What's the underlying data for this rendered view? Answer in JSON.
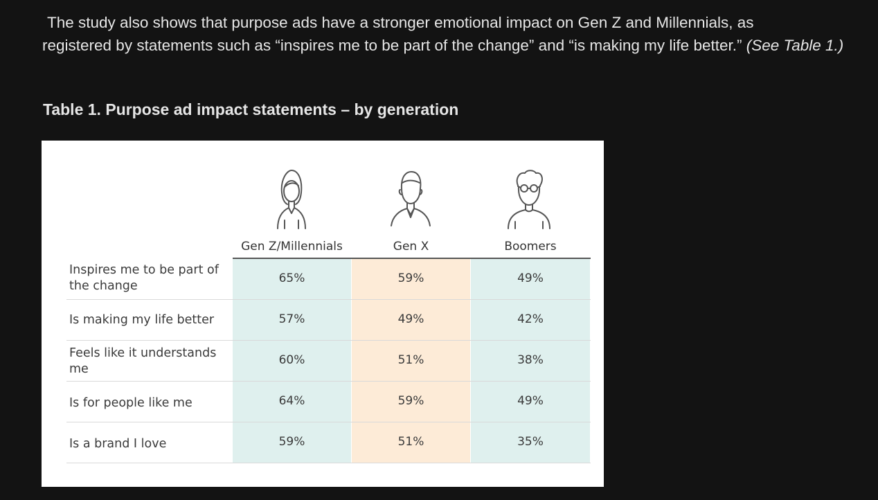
{
  "intro": {
    "lead": "The study also shows that purpose ads have a stronger emotional impact on Gen Z and Millennials, as",
    "body": "registered by statements such as “inspires me to be part of the change” and “is making my life better.” ",
    "ref": "(See Table 1.)"
  },
  "table": {
    "title": "Table 1. Purpose ad impact statements – by generation",
    "columns": [
      "Gen Z/Millennials",
      "Gen X",
      "Boomers"
    ],
    "avatars": [
      "woman-avatar-icon",
      "man-avatar-icon",
      "older-man-glasses-avatar-icon"
    ],
    "rows": [
      {
        "label": "Inspires me to be part of the change",
        "values": [
          "65%",
          "59%",
          "49%"
        ]
      },
      {
        "label": "Is making my life better",
        "values": [
          "57%",
          "49%",
          "42%"
        ]
      },
      {
        "label": "Feels like it understands me",
        "values": [
          "60%",
          "51%",
          "38%"
        ]
      },
      {
        "label": "Is for people like me",
        "values": [
          "64%",
          "59%",
          "49%"
        ]
      },
      {
        "label": "Is a brand I love",
        "values": [
          "59%",
          "51%",
          "35%"
        ]
      }
    ],
    "colors": {
      "teal_column": "#dff0ee",
      "peach_column": "#fdebd7"
    }
  }
}
